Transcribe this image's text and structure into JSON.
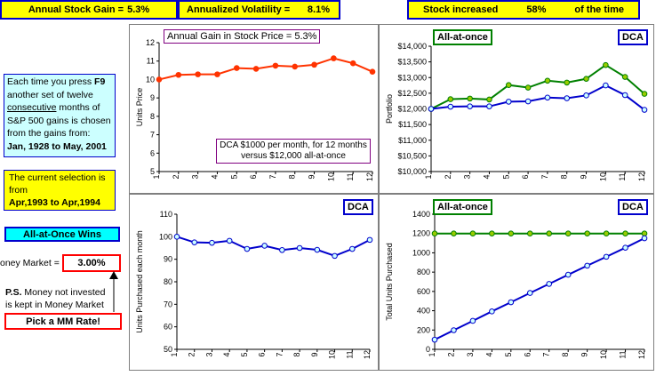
{
  "header": {
    "annual_gain_label": "Annual Stock Gain =",
    "annual_gain_value": "5.3%",
    "volatility_label": "Annualized Volatility =",
    "volatility_value": "8.1%",
    "increase_label": "Stock increased",
    "increase_value": "58%",
    "increase_suffix": "of the time"
  },
  "sidebar": {
    "f9_pre": "Each time you press ",
    "f9_key": "F9",
    "f9_mid1": " another set of twelve ",
    "f9_consec": "consecutive",
    "f9_mid2": " months of S&P 500 gains is chosen from the gains from:",
    "f9_range": "Jan, 1928 to May, 2001",
    "selection_label": "The current selection is from",
    "selection_range": "Apr,1993 to Apr,1994",
    "winner": "All-at-Once Wins",
    "mm_label": "oney Market =",
    "mm_value": "3.00%",
    "ps_bold": "P.S.",
    "ps_text": " Money not invested is kept in Money Market",
    "mm_button": "Pick a MM Rate!"
  },
  "colors": {
    "yellow": "#ffff00",
    "blue": "#0000cc",
    "green": "#008000",
    "red": "#ff0000",
    "cyan": "#00ffff",
    "orange_line": "#ff3300",
    "light_blue": "#ccffff"
  },
  "chart_data": [
    {
      "id": "units-price",
      "type": "line",
      "title": "Annual Gain in Stock Price = 5.3%",
      "annotation": "DCA $1000 per month, for 12 months versus $12,000 all-at-once",
      "ylabel": "Units Price",
      "ylim": [
        5,
        12
      ],
      "yticks": [
        "5",
        "6",
        "7",
        "8",
        "9",
        "10",
        "11",
        "12"
      ],
      "categories": [
        "1",
        "2",
        "3",
        "4",
        "5",
        "6",
        "7",
        "8",
        "9",
        "10",
        "11",
        "12"
      ],
      "series": [
        {
          "values": [
            10.0,
            10.25,
            10.28,
            10.28,
            10.62,
            10.58,
            10.75,
            10.7,
            10.8,
            11.15,
            10.88,
            10.42
          ]
        }
      ]
    },
    {
      "id": "portfolio",
      "type": "line",
      "labels": [
        "All-at-once",
        "DCA"
      ],
      "ylabel": "Portfolio",
      "ylim": [
        10000,
        14000
      ],
      "yticks": [
        "$10,000",
        "$10,500",
        "$11,000",
        "$11,500",
        "$12,000",
        "$12,500",
        "$13,000",
        "$13,500",
        "$14,000"
      ],
      "categories": [
        "1",
        "2",
        "3",
        "4",
        "5",
        "6",
        "7",
        "8",
        "9",
        "10",
        "11",
        "12"
      ],
      "series": [
        {
          "name": "All-at-once",
          "values": [
            12000,
            12310,
            12330,
            12300,
            12760,
            12680,
            12900,
            12840,
            12960,
            13400,
            13020,
            12480
          ]
        },
        {
          "name": "DCA",
          "values": [
            12000,
            12070,
            12080,
            12080,
            12230,
            12240,
            12360,
            12340,
            12430,
            12750,
            12440,
            11970
          ]
        }
      ]
    },
    {
      "id": "units-purchased",
      "type": "line",
      "labels": [
        "DCA"
      ],
      "ylabel": "Units Purchased each month",
      "ylim": [
        50,
        110
      ],
      "yticks": [
        "50",
        "60",
        "70",
        "80",
        "90",
        "100",
        "110"
      ],
      "categories": [
        "1",
        "2",
        "3",
        "4",
        "5",
        "6",
        "7",
        "8",
        "9",
        "10",
        "11",
        "12"
      ],
      "series": [
        {
          "name": "DCA",
          "values": [
            100,
            97.5,
            97.3,
            98.2,
            94.6,
            96.0,
            94.1,
            95.0,
            94.2,
            91.5,
            94.6,
            98.6
          ]
        }
      ]
    },
    {
      "id": "total-units",
      "type": "line",
      "labels": [
        "All-at-once",
        "DCA"
      ],
      "ylabel": "Total Units Purchased",
      "ylim": [
        0,
        1400
      ],
      "yticks": [
        "0",
        "200",
        "400",
        "600",
        "800",
        "1000",
        "1200",
        "1400"
      ],
      "categories": [
        "1",
        "2",
        "3",
        "4",
        "5",
        "6",
        "7",
        "8",
        "9",
        "10",
        "11",
        "12"
      ],
      "series": [
        {
          "name": "All-at-once",
          "values": [
            1200,
            1200,
            1200,
            1200,
            1200,
            1200,
            1200,
            1200,
            1200,
            1200,
            1200,
            1200
          ]
        },
        {
          "name": "DCA",
          "values": [
            100,
            198,
            295,
            393,
            488,
            584,
            678,
            773,
            867,
            959,
            1053,
            1151
          ]
        }
      ]
    }
  ]
}
